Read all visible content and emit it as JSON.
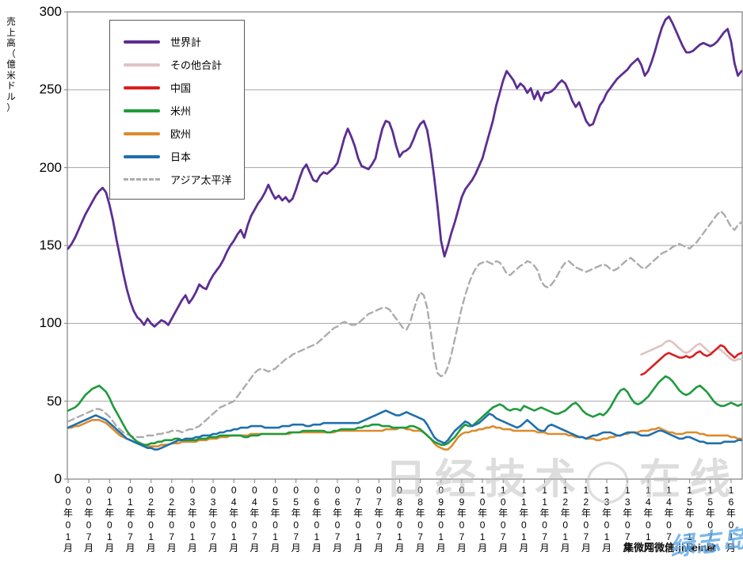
{
  "y_axis": {
    "title": "売上高（億米ドル）",
    "ticks": [
      0,
      50,
      100,
      150,
      200,
      250,
      300
    ],
    "min": 0,
    "max": 300
  },
  "x_axis": {
    "labels": [
      "00年01月",
      "00年07月",
      "01年01月",
      "01年07月",
      "02年01月",
      "02年07月",
      "03年01月",
      "03年07月",
      "04年01月",
      "04年07月",
      "05年01月",
      "05年07月",
      "06年01月",
      "06年07月",
      "07年01月",
      "07年07月",
      "08年01月",
      "08年07月",
      "09年01月",
      "09年07月",
      "10年01月",
      "10年07月",
      "11年01月",
      "11年07月",
      "12年01月",
      "12年07月",
      "13年01月",
      "13年07月",
      "14年01月",
      "14年07月",
      "15年01月",
      "15年07月",
      "16年01月"
    ]
  },
  "legend": [
    {
      "label": "世界計",
      "color": "#5C2E91",
      "dashed": false
    },
    {
      "label": "その他合計",
      "color": "#DFC3C3",
      "dashed": false
    },
    {
      "label": "中国",
      "color": "#D7201F",
      "dashed": false
    },
    {
      "label": "米州",
      "color": "#1E9B3C",
      "dashed": false
    },
    {
      "label": "欧州",
      "color": "#DC8B2C",
      "dashed": false
    },
    {
      "label": "日本",
      "color": "#2070AC",
      "dashed": false
    },
    {
      "label": "アジア太平洋",
      "color": "#ACACAC",
      "dashed": true
    }
  ],
  "watermarks": {
    "center": "日经技术◯在线",
    "site": "集微网微信:jiweinet",
    "overlay": "绿志岛"
  },
  "chart_data": {
    "type": "line",
    "title": "",
    "xlabel": "",
    "ylabel": "売上高（億米ドル）",
    "ylim": [
      0,
      300
    ],
    "grid": "horizontal",
    "legend_position": "top-left-inside",
    "x_start": "2000-01",
    "x_end": "2016-04",
    "x_unit": "month",
    "series": [
      {
        "name": "世界計",
        "color": "#5C2E91",
        "style": "solid",
        "width": 2.8,
        "start_index": 0,
        "values": [
          148,
          151,
          155,
          160,
          165,
          170,
          174,
          178,
          182,
          185,
          187,
          184,
          176,
          166,
          154,
          143,
          132,
          122,
          114,
          108,
          104,
          102,
          99,
          103,
          100,
          98,
          100,
          102,
          101,
          99,
          103,
          107,
          111,
          115,
          118,
          113,
          116,
          120,
          125,
          123,
          122,
          127,
          131,
          134,
          137,
          141,
          146,
          150,
          153,
          157,
          160,
          155,
          163,
          169,
          173,
          177,
          180,
          184,
          189,
          184,
          180,
          182,
          179,
          181,
          178,
          180,
          186,
          193,
          199,
          202,
          197,
          192,
          191,
          195,
          197,
          196,
          198,
          200,
          203,
          211,
          219,
          225,
          220,
          214,
          206,
          201,
          200,
          199,
          202,
          206,
          216,
          225,
          230,
          229,
          223,
          214,
          207,
          210,
          211,
          213,
          218,
          224,
          228,
          230,
          224,
          211,
          194,
          175,
          153,
          143,
          150,
          158,
          165,
          173,
          181,
          186,
          189,
          192,
          196,
          201,
          206,
          214,
          222,
          230,
          240,
          248,
          256,
          262,
          259,
          256,
          251,
          254,
          252,
          248,
          251,
          244,
          249,
          243,
          248,
          248,
          249,
          251,
          254,
          256,
          254,
          249,
          243,
          239,
          242,
          236,
          230,
          227,
          228,
          234,
          240,
          243,
          248,
          251,
          254,
          257,
          259,
          261,
          263,
          266,
          268,
          270,
          266,
          259,
          262,
          268,
          275,
          283,
          290,
          295,
          297,
          293,
          288,
          283,
          278,
          274,
          274,
          275,
          277,
          279,
          280,
          279,
          278,
          279,
          281,
          284,
          287,
          289,
          281,
          267,
          259,
          262
        ]
      },
      {
        "name": "その他合計",
        "color": "#DFC3C3",
        "style": "solid",
        "width": 2.6,
        "start_index": 166,
        "values": [
          80,
          81,
          82,
          83,
          84,
          85,
          86,
          88,
          89,
          88,
          86,
          84,
          82,
          81,
          82,
          84,
          86,
          87,
          85,
          83,
          81,
          82,
          84,
          83,
          81,
          79,
          77,
          76,
          77,
          77
        ]
      },
      {
        "name": "中国",
        "color": "#D7201F",
        "style": "solid",
        "width": 2.6,
        "start_index": 166,
        "values": [
          67,
          68,
          70,
          72,
          74,
          76,
          78,
          80,
          81,
          80,
          79,
          78,
          78,
          79,
          78,
          79,
          81,
          82,
          80,
          79,
          80,
          82,
          84,
          86,
          85,
          82,
          80,
          78,
          80,
          81
        ]
      },
      {
        "name": "米州",
        "color": "#1E9B3C",
        "style": "solid",
        "width": 2.6,
        "start_index": 0,
        "values": [
          44,
          45,
          46,
          48,
          51,
          54,
          56,
          58,
          59,
          60,
          58,
          56,
          52,
          47,
          43,
          39,
          35,
          31,
          28,
          26,
          24,
          23,
          22,
          22,
          23,
          23,
          24,
          24,
          25,
          25,
          25,
          26,
          26,
          25,
          25,
          25,
          25,
          25,
          26,
          26,
          26,
          27,
          27,
          27,
          28,
          28,
          28,
          28,
          28,
          28,
          28,
          27,
          27,
          28,
          28,
          28,
          29,
          29,
          29,
          29,
          29,
          29,
          29,
          29,
          30,
          30,
          30,
          30,
          31,
          31,
          31,
          31,
          31,
          31,
          31,
          30,
          30,
          31,
          31,
          32,
          32,
          32,
          32,
          32,
          33,
          33,
          34,
          34,
          35,
          35,
          35,
          34,
          34,
          34,
          33,
          33,
          33,
          33,
          33,
          34,
          34,
          33,
          32,
          30,
          28,
          26,
          24,
          23,
          22,
          22,
          23,
          25,
          27,
          30,
          33,
          35,
          34,
          34,
          36,
          38,
          40,
          42,
          44,
          46,
          47,
          48,
          47,
          45,
          44,
          45,
          45,
          44,
          47,
          46,
          45,
          44,
          45,
          46,
          45,
          44,
          43,
          42,
          42,
          43,
          44,
          46,
          48,
          49,
          47,
          44,
          42,
          41,
          40,
          41,
          42,
          41,
          43,
          46,
          50,
          54,
          57,
          58,
          56,
          52,
          49,
          48,
          49,
          51,
          53,
          56,
          59,
          62,
          64,
          66,
          65,
          63,
          60,
          57,
          55,
          54,
          55,
          57,
          59,
          60,
          58,
          56,
          53,
          50,
          48,
          47,
          47,
          48,
          49,
          48,
          47,
          48
        ]
      },
      {
        "name": "欧州",
        "color": "#DC8B2C",
        "style": "solid",
        "width": 2.6,
        "start_index": 0,
        "values": [
          33,
          33,
          34,
          34,
          35,
          36,
          37,
          38,
          38,
          38,
          37,
          36,
          34,
          32,
          30,
          28,
          27,
          26,
          25,
          24,
          23,
          22,
          22,
          21,
          21,
          21,
          21,
          22,
          22,
          22,
          23,
          23,
          23,
          24,
          24,
          24,
          24,
          24,
          25,
          25,
          25,
          26,
          26,
          26,
          27,
          27,
          27,
          28,
          28,
          28,
          28,
          28,
          28,
          29,
          29,
          29,
          29,
          29,
          29,
          29,
          29,
          29,
          29,
          29,
          29,
          30,
          30,
          30,
          30,
          30,
          30,
          30,
          30,
          30,
          30,
          30,
          30,
          30,
          31,
          31,
          31,
          31,
          31,
          31,
          31,
          31,
          31,
          31,
          31,
          31,
          31,
          31,
          32,
          32,
          32,
          32,
          33,
          33,
          32,
          32,
          31,
          31,
          31,
          30,
          28,
          26,
          23,
          21,
          20,
          19,
          19,
          21,
          24,
          27,
          29,
          30,
          30,
          31,
          31,
          32,
          32,
          33,
          33,
          34,
          33,
          33,
          32,
          32,
          32,
          31,
          31,
          31,
          31,
          31,
          31,
          31,
          30,
          30,
          30,
          29,
          29,
          29,
          29,
          29,
          29,
          28,
          28,
          27,
          27,
          27,
          26,
          26,
          26,
          25,
          25,
          26,
          26,
          27,
          27,
          28,
          28,
          29,
          29,
          30,
          30,
          30,
          31,
          31,
          31,
          32,
          32,
          33,
          32,
          31,
          30,
          30,
          29,
          29,
          29,
          30,
          30,
          30,
          30,
          29,
          29,
          28,
          28,
          28,
          28,
          28,
          28,
          28,
          27,
          27,
          26,
          26
        ]
      },
      {
        "name": "日本",
        "color": "#2070AC",
        "style": "solid",
        "width": 2.6,
        "start_index": 0,
        "values": [
          33,
          34,
          35,
          36,
          37,
          38,
          39,
          40,
          41,
          40,
          39,
          38,
          36,
          34,
          32,
          30,
          28,
          26,
          25,
          24,
          23,
          22,
          21,
          20,
          20,
          19,
          19,
          20,
          21,
          22,
          23,
          24,
          25,
          25,
          26,
          26,
          26,
          27,
          27,
          28,
          28,
          28,
          29,
          29,
          30,
          30,
          31,
          31,
          32,
          32,
          33,
          33,
          33,
          34,
          34,
          34,
          34,
          33,
          33,
          33,
          33,
          33,
          34,
          34,
          34,
          35,
          35,
          35,
          35,
          34,
          34,
          35,
          35,
          35,
          36,
          36,
          36,
          36,
          36,
          36,
          36,
          36,
          36,
          36,
          36,
          37,
          38,
          39,
          40,
          41,
          42,
          43,
          44,
          43,
          42,
          41,
          41,
          42,
          43,
          42,
          41,
          40,
          39,
          38,
          35,
          31,
          27,
          25,
          24,
          23,
          25,
          28,
          31,
          33,
          35,
          37,
          36,
          34,
          35,
          36,
          38,
          40,
          42,
          41,
          39,
          38,
          37,
          36,
          35,
          34,
          33,
          34,
          36,
          38,
          36,
          34,
          32,
          31,
          31,
          34,
          35,
          34,
          33,
          32,
          31,
          30,
          29,
          28,
          27,
          27,
          26,
          27,
          28,
          28,
          29,
          30,
          30,
          30,
          29,
          28,
          28,
          29,
          30,
          30,
          30,
          29,
          28,
          28,
          28,
          29,
          30,
          31,
          31,
          30,
          29,
          28,
          27,
          26,
          26,
          27,
          27,
          26,
          25,
          24,
          24,
          23,
          23,
          23,
          23,
          23,
          24,
          24,
          24,
          24,
          25,
          25
        ]
      },
      {
        "name": "アジア太平洋",
        "color": "#ACACAC",
        "style": "dashed",
        "width": 2.4,
        "start_index": 0,
        "values": [
          37,
          38,
          39,
          40,
          41,
          42,
          43,
          44,
          45,
          45,
          44,
          42,
          40,
          37,
          34,
          32,
          30,
          29,
          28,
          27,
          27,
          27,
          27,
          28,
          28,
          28,
          29,
          29,
          30,
          30,
          31,
          31,
          31,
          30,
          31,
          32,
          32,
          33,
          34,
          36,
          38,
          40,
          42,
          44,
          46,
          47,
          48,
          49,
          50,
          53,
          56,
          59,
          62,
          65,
          68,
          70,
          71,
          70,
          69,
          70,
          71,
          73,
          75,
          77,
          78,
          80,
          81,
          82,
          83,
          84,
          85,
          86,
          87,
          89,
          91,
          93,
          95,
          97,
          98,
          100,
          101,
          100,
          99,
          99,
          100,
          102,
          104,
          106,
          107,
          108,
          109,
          110,
          110,
          109,
          106,
          103,
          100,
          97,
          96,
          100,
          108,
          115,
          120,
          118,
          110,
          95,
          78,
          68,
          66,
          67,
          72,
          80,
          90,
          100,
          110,
          118,
          125,
          131,
          135,
          138,
          139,
          140,
          139,
          138,
          140,
          139,
          136,
          132,
          131,
          133,
          135,
          137,
          138,
          140,
          139,
          137,
          134,
          127,
          124,
          123,
          125,
          128,
          132,
          136,
          139,
          140,
          138,
          136,
          135,
          134,
          133,
          134,
          135,
          136,
          137,
          138,
          137,
          135,
          134,
          135,
          137,
          139,
          141,
          142,
          140,
          138,
          136,
          135,
          137,
          139,
          141,
          143,
          145,
          146,
          147,
          149,
          150,
          151,
          150,
          149,
          148,
          150,
          152,
          155,
          158,
          161,
          164,
          167,
          170,
          172,
          170,
          166,
          162,
          160,
          163,
          165
        ]
      }
    ]
  }
}
